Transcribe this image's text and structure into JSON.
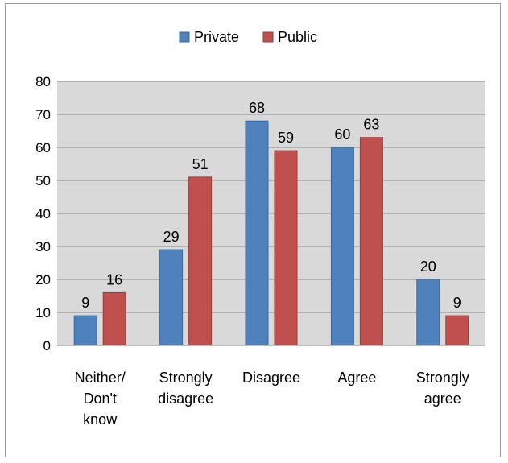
{
  "chart_data": {
    "type": "bar",
    "categories": [
      [
        "Neither/",
        "Don't",
        "know"
      ],
      [
        "Strongly",
        "disagree"
      ],
      [
        "Disagree"
      ],
      [
        "Agree"
      ],
      [
        "Strongly",
        "agree"
      ]
    ],
    "series": [
      {
        "name": "Private",
        "values": [
          9,
          29,
          68,
          60,
          20
        ],
        "color": "#4f81bd",
        "stroke": "#3a6aa0"
      },
      {
        "name": "Public",
        "values": [
          16,
          51,
          59,
          63,
          9
        ],
        "color": "#c0504d",
        "stroke": "#9c3b38"
      }
    ],
    "ylim": [
      0,
      80
    ],
    "yticks": [
      0,
      10,
      20,
      30,
      40,
      50,
      60,
      70,
      80
    ],
    "grid": true,
    "legend_position": "top",
    "plot_background": "#d9d9d9",
    "gridline_color": "#8c8c8c"
  }
}
